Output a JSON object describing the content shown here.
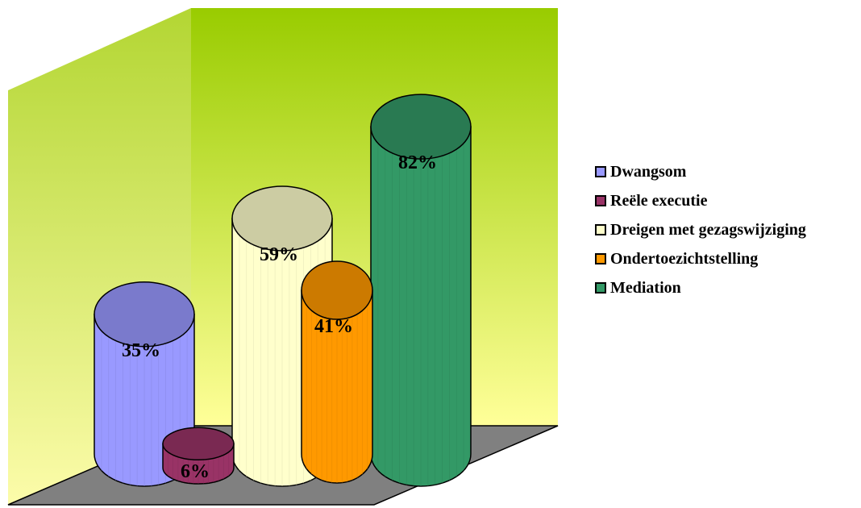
{
  "chart_data": {
    "type": "bar",
    "style": "3d-cylinder",
    "categories": [
      "Dwangsom",
      "Reële executie",
      "Dreigen met gezagswijziging",
      "Ondertoezichtstelling",
      "Mediation"
    ],
    "values": [
      35,
      6,
      59,
      41,
      82
    ],
    "value_labels": [
      "35%",
      "6%",
      "59%",
      "41%",
      "82%"
    ],
    "colors": [
      "#9999ff",
      "#993366",
      "#ffffcc",
      "#ff9900",
      "#339966"
    ],
    "ylim": [
      0,
      100
    ],
    "grid": false,
    "legend_position": "right",
    "wall_gradient": [
      "#99cc00",
      "#ffff99"
    ],
    "floor_color": "#808080"
  },
  "legend": {
    "items": [
      {
        "label": "Dwangsom",
        "color": "#9999ff"
      },
      {
        "label": "Reële executie",
        "color": "#993366"
      },
      {
        "label": "Dreigen met gezagswijziging",
        "color": "#ffffcc"
      },
      {
        "label": "Ondertoezichtstelling",
        "color": "#ff9900"
      },
      {
        "label": "Mediation",
        "color": "#339966"
      }
    ]
  }
}
